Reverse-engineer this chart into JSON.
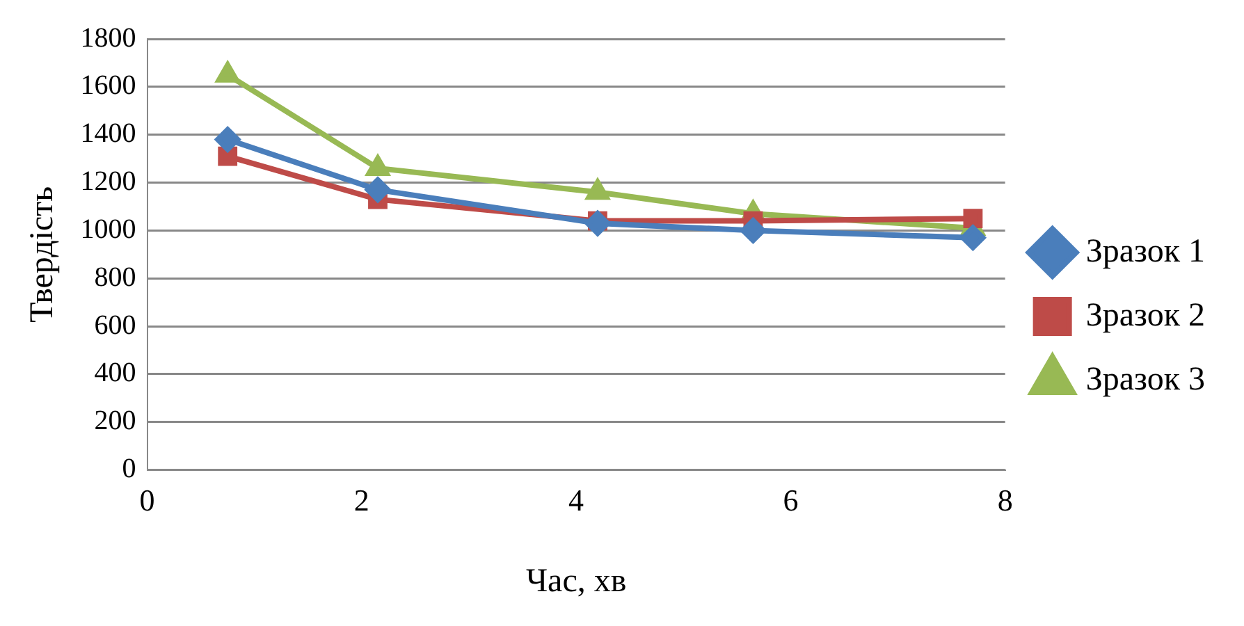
{
  "chart_data": {
    "type": "line",
    "xlabel": "Час, хв",
    "ylabel": "Твердість",
    "xlim": [
      0,
      8
    ],
    "xticks": [
      0,
      2,
      4,
      6,
      8
    ],
    "ylim": [
      0,
      1800
    ],
    "yticks": [
      0,
      200,
      400,
      600,
      800,
      1000,
      1200,
      1400,
      1600,
      1800
    ],
    "grid": "y",
    "legend": "right",
    "series": [
      {
        "name": "Зразок 1",
        "color": "#4a7ebb",
        "marker": "diamond",
        "x": [
          0.75,
          2.15,
          4.2,
          5.65,
          7.7
        ],
        "values": [
          1380,
          1170,
          1030,
          1000,
          970
        ]
      },
      {
        "name": "Зразок 2",
        "color": "#be4b48",
        "marker": "square",
        "x": [
          0.75,
          2.15,
          4.2,
          5.65,
          7.7
        ],
        "values": [
          1310,
          1130,
          1040,
          1040,
          1050
        ]
      },
      {
        "name": "Зразок 3",
        "color": "#98b954",
        "marker": "triangle",
        "x": [
          0.75,
          2.15,
          4.2,
          5.65,
          7.7
        ],
        "values": [
          1650,
          1260,
          1160,
          1070,
          1010
        ]
      }
    ]
  }
}
